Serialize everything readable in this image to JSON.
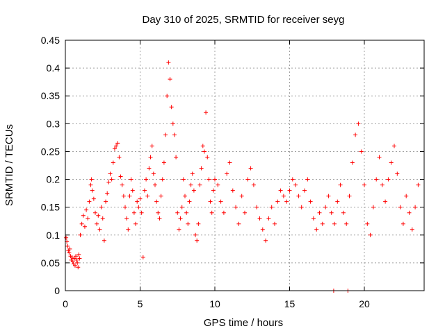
{
  "chart_data": {
    "type": "scatter",
    "title": "Day 310 of 2025, SRMTID for receiver seyg",
    "xlabel": "GPS time / hours",
    "ylabel": "SRMTID / TECUs",
    "xlim": [
      0,
      24
    ],
    "ylim": [
      0,
      0.45
    ],
    "xticks": [
      0,
      5,
      10,
      15,
      20
    ],
    "yticks": [
      0,
      0.05,
      0.1,
      0.15,
      0.2,
      0.25,
      0.3,
      0.35,
      0.4,
      0.45
    ],
    "xtick_labels": [
      "0",
      "5",
      "10",
      "15",
      "20"
    ],
    "ytick_labels": [
      "0",
      "0.05",
      "0.1",
      "0.15",
      "0.2",
      "0.25",
      "0.3",
      "0.35",
      "0.4",
      "0.45"
    ],
    "grid": true,
    "marker": "+",
    "color": "#ff0000",
    "series": [
      {
        "name": "SRMTID",
        "points": [
          [
            0.05,
            0.095
          ],
          [
            0.1,
            0.088
          ],
          [
            0.15,
            0.08
          ],
          [
            0.2,
            0.072
          ],
          [
            0.25,
            0.068
          ],
          [
            0.3,
            0.075
          ],
          [
            0.35,
            0.062
          ],
          [
            0.4,
            0.055
          ],
          [
            0.45,
            0.06
          ],
          [
            0.5,
            0.052
          ],
          [
            0.55,
            0.048
          ],
          [
            0.6,
            0.058
          ],
          [
            0.65,
            0.045
          ],
          [
            0.7,
            0.062
          ],
          [
            0.75,
            0.055
          ],
          [
            0.8,
            0.05
          ],
          [
            0.85,
            0.042
          ],
          [
            0.9,
            0.065
          ],
          [
            0.95,
            0.058
          ],
          [
            1.0,
            0.1
          ],
          [
            1.1,
            0.12
          ],
          [
            1.2,
            0.135
          ],
          [
            1.3,
            0.115
          ],
          [
            1.4,
            0.145
          ],
          [
            1.5,
            0.13
          ],
          [
            1.6,
            0.16
          ],
          [
            1.7,
            0.19
          ],
          [
            1.75,
            0.2
          ],
          [
            1.8,
            0.18
          ],
          [
            1.9,
            0.165
          ],
          [
            2.0,
            0.14
          ],
          [
            2.1,
            0.12
          ],
          [
            2.2,
            0.135
          ],
          [
            2.3,
            0.11
          ],
          [
            2.4,
            0.15
          ],
          [
            2.5,
            0.13
          ],
          [
            2.6,
            0.09
          ],
          [
            2.7,
            0.16
          ],
          [
            2.8,
            0.175
          ],
          [
            2.9,
            0.195
          ],
          [
            3.0,
            0.21
          ],
          [
            3.1,
            0.2
          ],
          [
            3.2,
            0.23
          ],
          [
            3.3,
            0.255
          ],
          [
            3.4,
            0.26
          ],
          [
            3.5,
            0.265
          ],
          [
            3.6,
            0.24
          ],
          [
            3.7,
            0.205
          ],
          [
            3.8,
            0.19
          ],
          [
            3.9,
            0.17
          ],
          [
            4.0,
            0.15
          ],
          [
            4.1,
            0.13
          ],
          [
            4.2,
            0.11
          ],
          [
            4.3,
            0.17
          ],
          [
            4.4,
            0.2
          ],
          [
            4.5,
            0.18
          ],
          [
            4.6,
            0.14
          ],
          [
            4.7,
            0.12
          ],
          [
            4.8,
            0.16
          ],
          [
            4.9,
            0.15
          ],
          [
            5.0,
            0.165
          ],
          [
            5.1,
            0.14
          ],
          [
            5.2,
            0.06
          ],
          [
            5.3,
            0.18
          ],
          [
            5.4,
            0.2
          ],
          [
            5.5,
            0.17
          ],
          [
            5.6,
            0.22
          ],
          [
            5.7,
            0.24
          ],
          [
            5.8,
            0.26
          ],
          [
            5.9,
            0.21
          ],
          [
            6.0,
            0.19
          ],
          [
            6.1,
            0.16
          ],
          [
            6.2,
            0.14
          ],
          [
            6.3,
            0.13
          ],
          [
            6.4,
            0.17
          ],
          [
            6.5,
            0.2
          ],
          [
            6.6,
            0.23
          ],
          [
            6.7,
            0.28
          ],
          [
            6.8,
            0.35
          ],
          [
            6.9,
            0.41
          ],
          [
            7.0,
            0.38
          ],
          [
            7.1,
            0.33
          ],
          [
            7.2,
            0.3
          ],
          [
            7.3,
            0.28
          ],
          [
            7.4,
            0.24
          ],
          [
            7.5,
            0.14
          ],
          [
            7.6,
            0.11
          ],
          [
            7.7,
            0.13
          ],
          [
            7.8,
            0.15
          ],
          [
            7.9,
            0.2
          ],
          [
            8.0,
            0.17
          ],
          [
            8.1,
            0.14
          ],
          [
            8.2,
            0.12
          ],
          [
            8.3,
            0.16
          ],
          [
            8.4,
            0.19
          ],
          [
            8.5,
            0.21
          ],
          [
            8.6,
            0.18
          ],
          [
            8.7,
            0.1
          ],
          [
            8.8,
            0.09
          ],
          [
            8.9,
            0.12
          ],
          [
            9.0,
            0.19
          ],
          [
            9.1,
            0.22
          ],
          [
            9.2,
            0.26
          ],
          [
            9.3,
            0.25
          ],
          [
            9.4,
            0.32
          ],
          [
            9.5,
            0.24
          ],
          [
            9.6,
            0.2
          ],
          [
            9.7,
            0.16
          ],
          [
            9.8,
            0.14
          ],
          [
            9.9,
            0.18
          ],
          [
            10.0,
            0.2
          ],
          [
            10.2,
            0.19
          ],
          [
            10.4,
            0.16
          ],
          [
            10.6,
            0.14
          ],
          [
            10.8,
            0.21
          ],
          [
            11.0,
            0.23
          ],
          [
            11.2,
            0.18
          ],
          [
            11.4,
            0.15
          ],
          [
            11.6,
            0.12
          ],
          [
            11.8,
            0.17
          ],
          [
            12.0,
            0.14
          ],
          [
            12.2,
            0.2
          ],
          [
            12.4,
            0.22
          ],
          [
            12.6,
            0.19
          ],
          [
            12.8,
            0.15
          ],
          [
            13.0,
            0.13
          ],
          [
            13.2,
            0.11
          ],
          [
            13.4,
            0.09
          ],
          [
            13.6,
            0.13
          ],
          [
            13.8,
            0.15
          ],
          [
            14.0,
            0.12
          ],
          [
            14.2,
            0.16
          ],
          [
            14.4,
            0.18
          ],
          [
            14.6,
            0.17
          ],
          [
            14.8,
            0.16
          ],
          [
            15.0,
            0.18
          ],
          [
            15.2,
            0.2
          ],
          [
            15.4,
            0.19
          ],
          [
            15.6,
            0.17
          ],
          [
            15.8,
            0.15
          ],
          [
            16.0,
            0.18
          ],
          [
            16.2,
            0.2
          ],
          [
            16.4,
            0.16
          ],
          [
            16.6,
            0.13
          ],
          [
            16.8,
            0.11
          ],
          [
            17.0,
            0.14
          ],
          [
            17.2,
            0.12
          ],
          [
            17.4,
            0.15
          ],
          [
            17.6,
            0.17
          ],
          [
            17.8,
            0.14
          ],
          [
            18.0,
            0.12
          ],
          [
            18.2,
            0.16
          ],
          [
            18.4,
            0.19
          ],
          [
            18.6,
            0.14
          ],
          [
            18.8,
            0.12
          ],
          [
            19.0,
            0.17
          ],
          [
            19.2,
            0.23
          ],
          [
            19.4,
            0.28
          ],
          [
            19.6,
            0.3
          ],
          [
            19.8,
            0.25
          ],
          [
            20.0,
            0.19
          ],
          [
            20.2,
            0.12
          ],
          [
            20.4,
            0.1
          ],
          [
            20.6,
            0.15
          ],
          [
            20.8,
            0.2
          ],
          [
            21.0,
            0.24
          ],
          [
            21.2,
            0.19
          ],
          [
            21.4,
            0.16
          ],
          [
            21.6,
            0.2
          ],
          [
            21.8,
            0.23
          ],
          [
            22.0,
            0.26
          ],
          [
            22.2,
            0.21
          ],
          [
            22.4,
            0.15
          ],
          [
            22.6,
            0.12
          ],
          [
            22.8,
            0.17
          ],
          [
            23.0,
            0.14
          ],
          [
            23.2,
            0.11
          ],
          [
            23.4,
            0.15
          ],
          [
            23.6,
            0.19
          ],
          [
            17.95,
            0.0
          ],
          [
            18.9,
            0.0
          ]
        ]
      }
    ]
  }
}
